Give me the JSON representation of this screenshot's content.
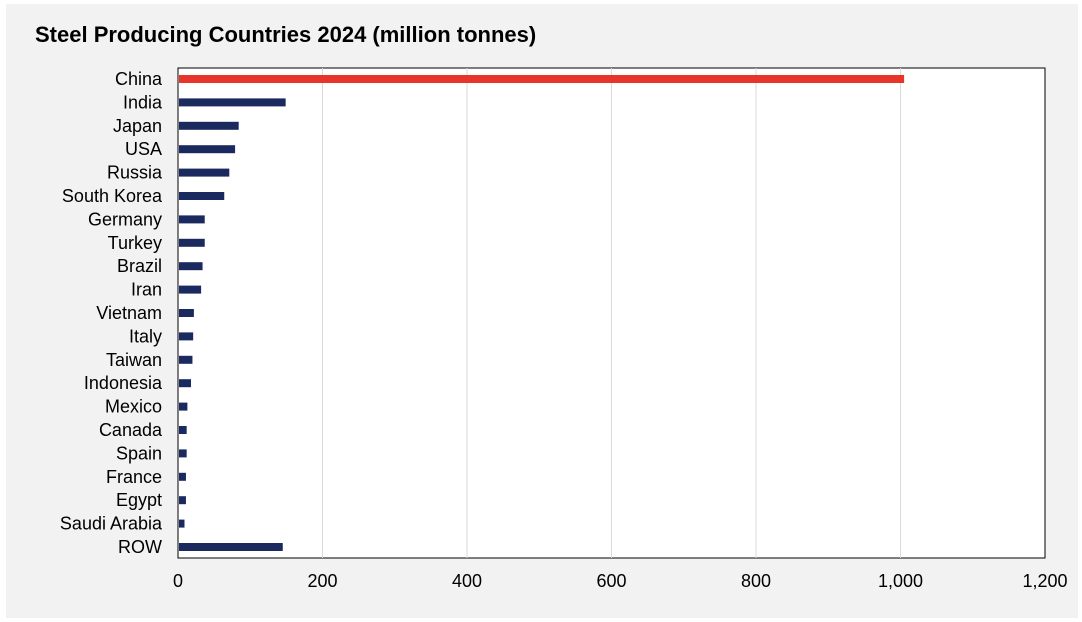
{
  "chart_data": {
    "type": "bar",
    "orientation": "horizontal",
    "title": "Steel Producing Countries 2024 (million tonnes)",
    "categories": [
      "China",
      "India",
      "Japan",
      "USA",
      "Russia",
      "South Korea",
      "Germany",
      "Turkey",
      "Brazil",
      "Iran",
      "Vietnam",
      "Italy",
      "Taiwan",
      "Indonesia",
      "Mexico",
      "Canada",
      "Spain",
      "France",
      "Egypt",
      "Saudi Arabia",
      "ROW"
    ],
    "values": [
      1005,
      149,
      84,
      79,
      71,
      64,
      37,
      37,
      34,
      32,
      22,
      21,
      20,
      18,
      13,
      12,
      12,
      11,
      11,
      9,
      145
    ],
    "colors": [
      "#e8352a",
      "#1b2a5e",
      "#1b2a5e",
      "#1b2a5e",
      "#1b2a5e",
      "#1b2a5e",
      "#1b2a5e",
      "#1b2a5e",
      "#1b2a5e",
      "#1b2a5e",
      "#1b2a5e",
      "#1b2a5e",
      "#1b2a5e",
      "#1b2a5e",
      "#1b2a5e",
      "#1b2a5e",
      "#1b2a5e",
      "#1b2a5e",
      "#1b2a5e",
      "#1b2a5e",
      "#1b2a5e"
    ],
    "xticks": [
      "0",
      "200",
      "400",
      "600",
      "800",
      "1,000",
      "1,200"
    ],
    "xlim": [
      0,
      1200
    ],
    "xgrid": true,
    "legend": "none"
  }
}
